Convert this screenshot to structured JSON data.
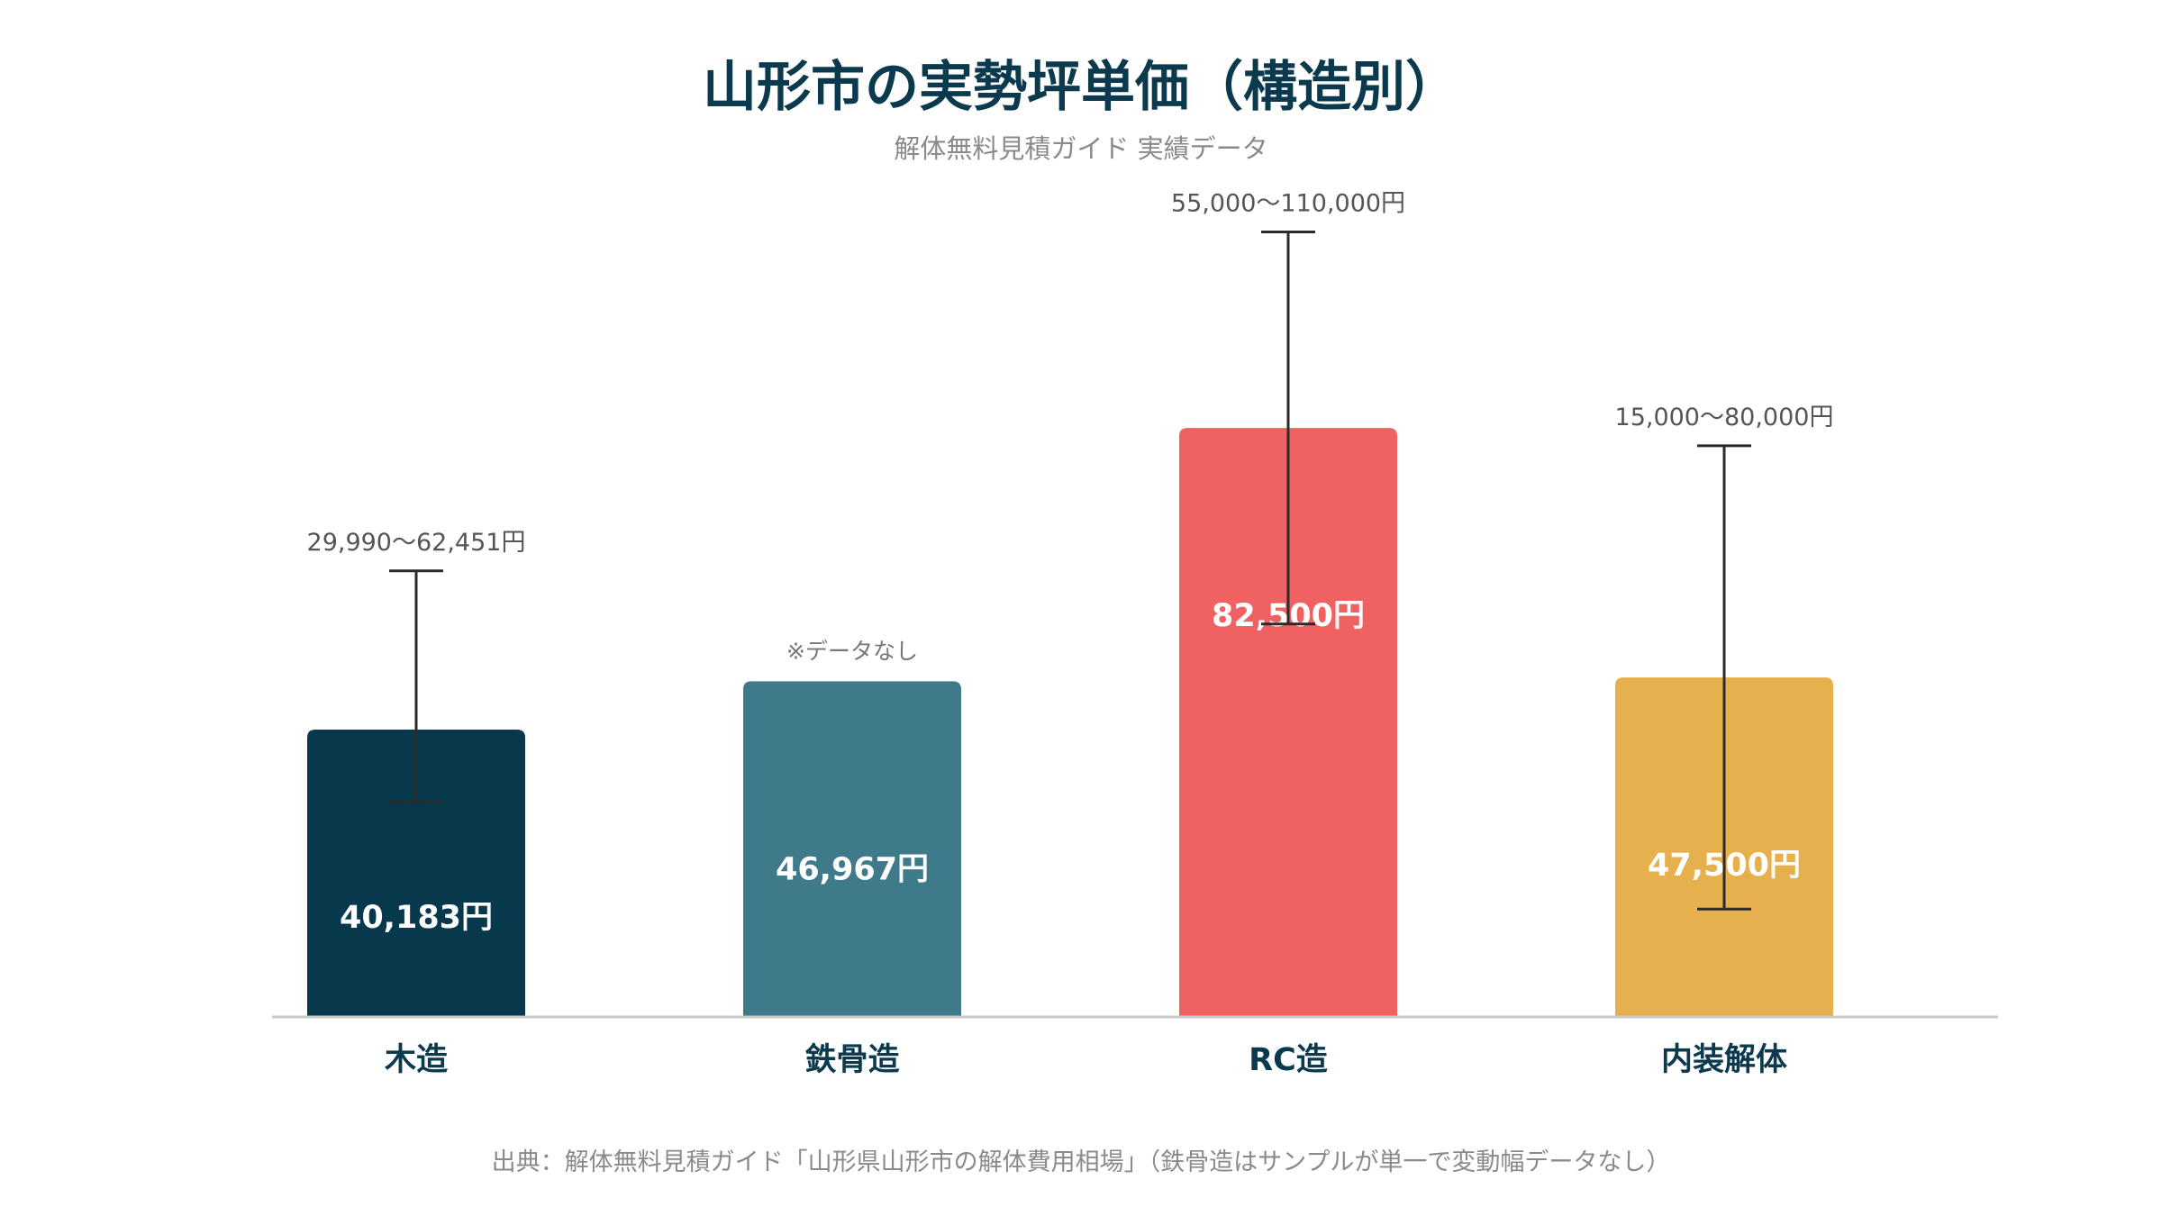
{
  "chart_data": {
    "type": "bar",
    "title": "山形市の実勢坪単価（構造別）",
    "subtitle": "解体無料見積ガイド 実績データ",
    "xlabel": "",
    "ylabel": "",
    "ylim": [
      0,
      125000
    ],
    "grid": false,
    "legend": "none",
    "categories": [
      "木造",
      "鉄骨造",
      "RC造",
      "内装解体"
    ],
    "values": [
      40183,
      46967,
      82500,
      47500
    ],
    "value_labels": [
      "40,183円",
      "46,967円",
      "82,500円",
      "47,500円"
    ],
    "ranges": [
      {
        "low": 29990,
        "high": 62451,
        "label": "29,990〜62,451円"
      },
      null,
      {
        "low": 55000,
        "high": 110000,
        "label": "55,000〜110,000円"
      },
      {
        "low": 15000,
        "high": 80000,
        "label": "15,000〜80,000円"
      }
    ],
    "annotations": [
      "",
      "※データなし",
      "",
      ""
    ],
    "colors": [
      "#07384b",
      "#3f7a8b",
      "#f06262",
      "#e6b04c"
    ],
    "source": "出典：解体無料見積ガイド「山形県山形市の解体費用相場」（鉄骨造はサンプルが単一で変動幅データなし）"
  }
}
